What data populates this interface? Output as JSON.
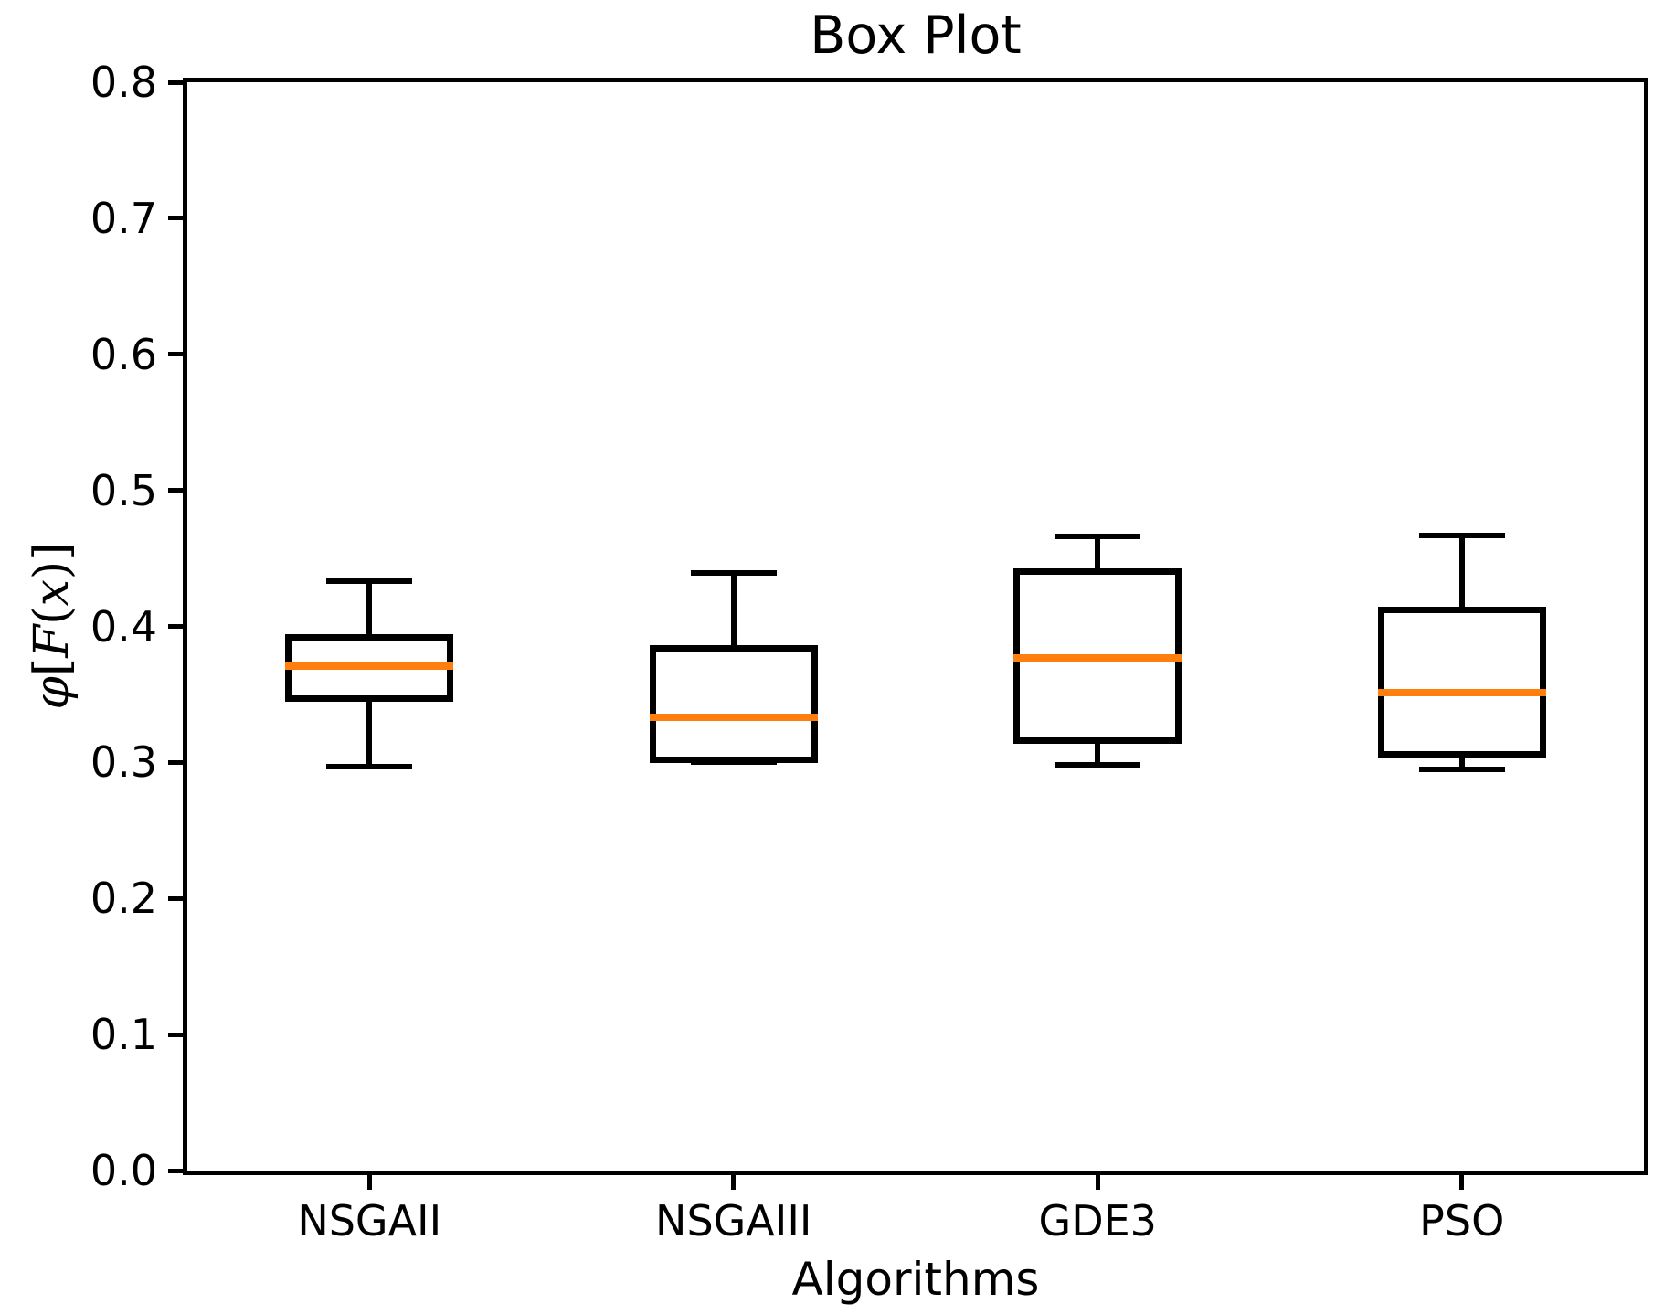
{
  "title": "Box Plot",
  "axes": {
    "x_label": "Algorithms",
    "y_label": "φ[F(x)]",
    "y_label_parts": {
      "phi": "φ",
      "lbracket": "[",
      "F": "F",
      "lparen": "(",
      "x": "x",
      "rparen": ")",
      "rbracket": "]"
    },
    "y_tick_labels": [
      "0.0",
      "0.1",
      "0.2",
      "0.3",
      "0.4",
      "0.5",
      "0.6",
      "0.7",
      "0.8"
    ],
    "x_tick_labels": [
      "NSGAII",
      "NSGAIII",
      "GDE3",
      "PSO"
    ]
  },
  "chart_data": {
    "type": "boxplot",
    "title": "Box Plot",
    "xlabel": "Algorithms",
    "ylabel": "φ[F(x)]",
    "categories": [
      "NSGAII",
      "NSGAIII",
      "GDE3",
      "PSO"
    ],
    "ylim": [
      0.0,
      0.8
    ],
    "y_tick_step": 0.1,
    "grid": false,
    "legend_position": "none",
    "orientation": "vertical",
    "series": [
      {
        "name": "NSGAII",
        "whislo": 0.297,
        "q1": 0.347,
        "med": 0.371,
        "q3": 0.392,
        "whishi": 0.433,
        "fliers": []
      },
      {
        "name": "NSGAIII",
        "whislo": 0.3,
        "q1": 0.302,
        "med": 0.333,
        "q3": 0.384,
        "whishi": 0.439,
        "fliers": []
      },
      {
        "name": "GDE3",
        "whislo": 0.298,
        "q1": 0.316,
        "med": 0.377,
        "q3": 0.44,
        "whishi": 0.466,
        "fliers": []
      },
      {
        "name": "PSO",
        "whislo": 0.295,
        "q1": 0.306,
        "med": 0.351,
        "q3": 0.412,
        "whishi": 0.467,
        "fliers": []
      }
    ],
    "colors": {
      "box_line": "#000000",
      "whisker_line": "#000000",
      "median_line": "#ff7f0e",
      "background": "#ffffff"
    }
  }
}
